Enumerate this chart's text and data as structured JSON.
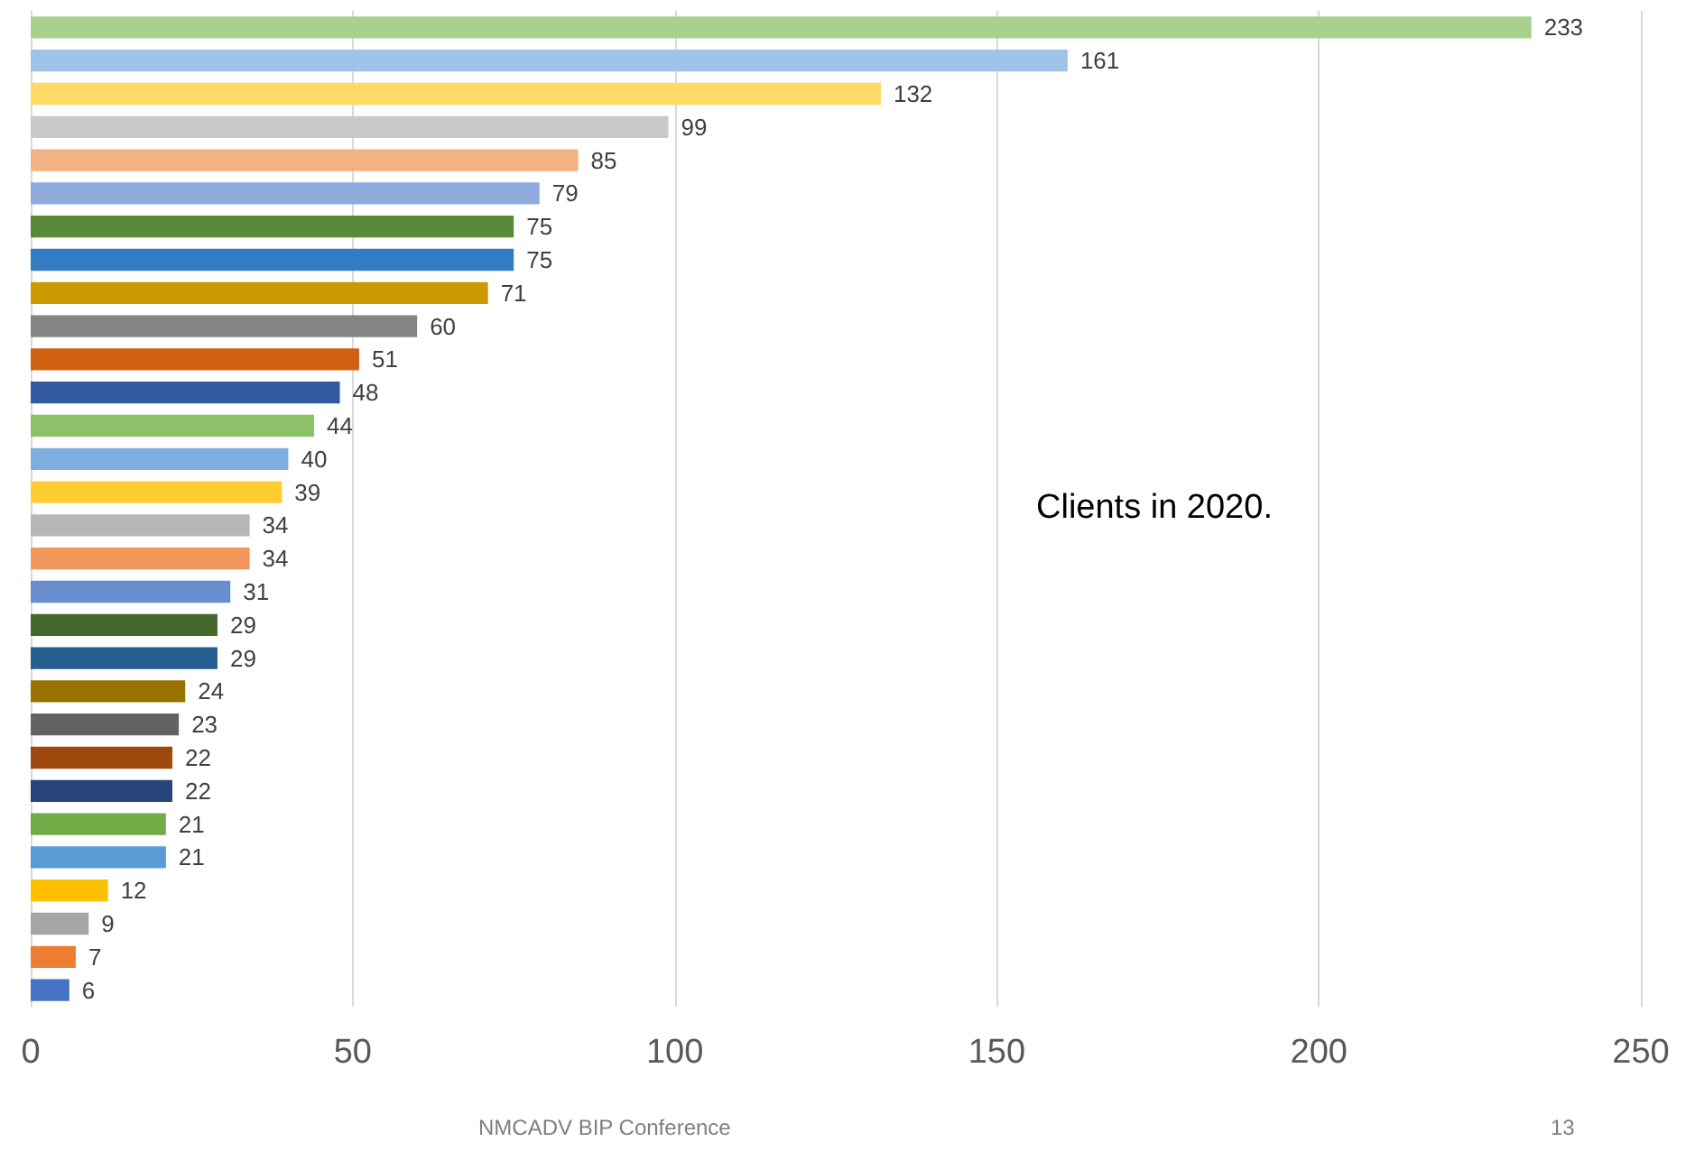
{
  "chart_data": {
    "type": "bar",
    "orientation": "horizontal",
    "categories": [
      null,
      null,
      null,
      null,
      null,
      null,
      null,
      null,
      null,
      null,
      null,
      null,
      null,
      null,
      null,
      null,
      null,
      null,
      null,
      null,
      null,
      null,
      null,
      null,
      null,
      null,
      null,
      null,
      null,
      null
    ],
    "values": [
      233,
      161,
      132,
      99,
      85,
      79,
      75,
      75,
      71,
      60,
      51,
      48,
      44,
      40,
      39,
      34,
      34,
      31,
      29,
      29,
      24,
      23,
      22,
      22,
      21,
      21,
      12,
      9,
      7,
      6
    ],
    "colors": [
      "#a9d18e",
      "#9dc3e6",
      "#ffd966",
      "#c9c9c9",
      "#f4b183",
      "#8faadc",
      "#5a8a39",
      "#327dc2",
      "#cc9a00",
      "#848484",
      "#d26012",
      "#335aa1",
      "#8cc168",
      "#7cafdd",
      "#ffcd33",
      "#b7b7b7",
      "#f1975a",
      "#698ed0",
      "#43682b",
      "#255e91",
      "#997300",
      "#636363",
      "#9e480e",
      "#264478",
      "#70ad47",
      "#5b9bd5",
      "#ffc000",
      "#a5a5a5",
      "#ed7d31",
      "#4472c4"
    ],
    "xlim": [
      0,
      250
    ],
    "xticks": [
      0,
      50,
      100,
      150,
      200,
      250
    ],
    "grid": "x",
    "data_labels": true,
    "annotations": [
      "Clients in 2020.",
      "NMCADV BIP Conference",
      "13"
    ]
  }
}
